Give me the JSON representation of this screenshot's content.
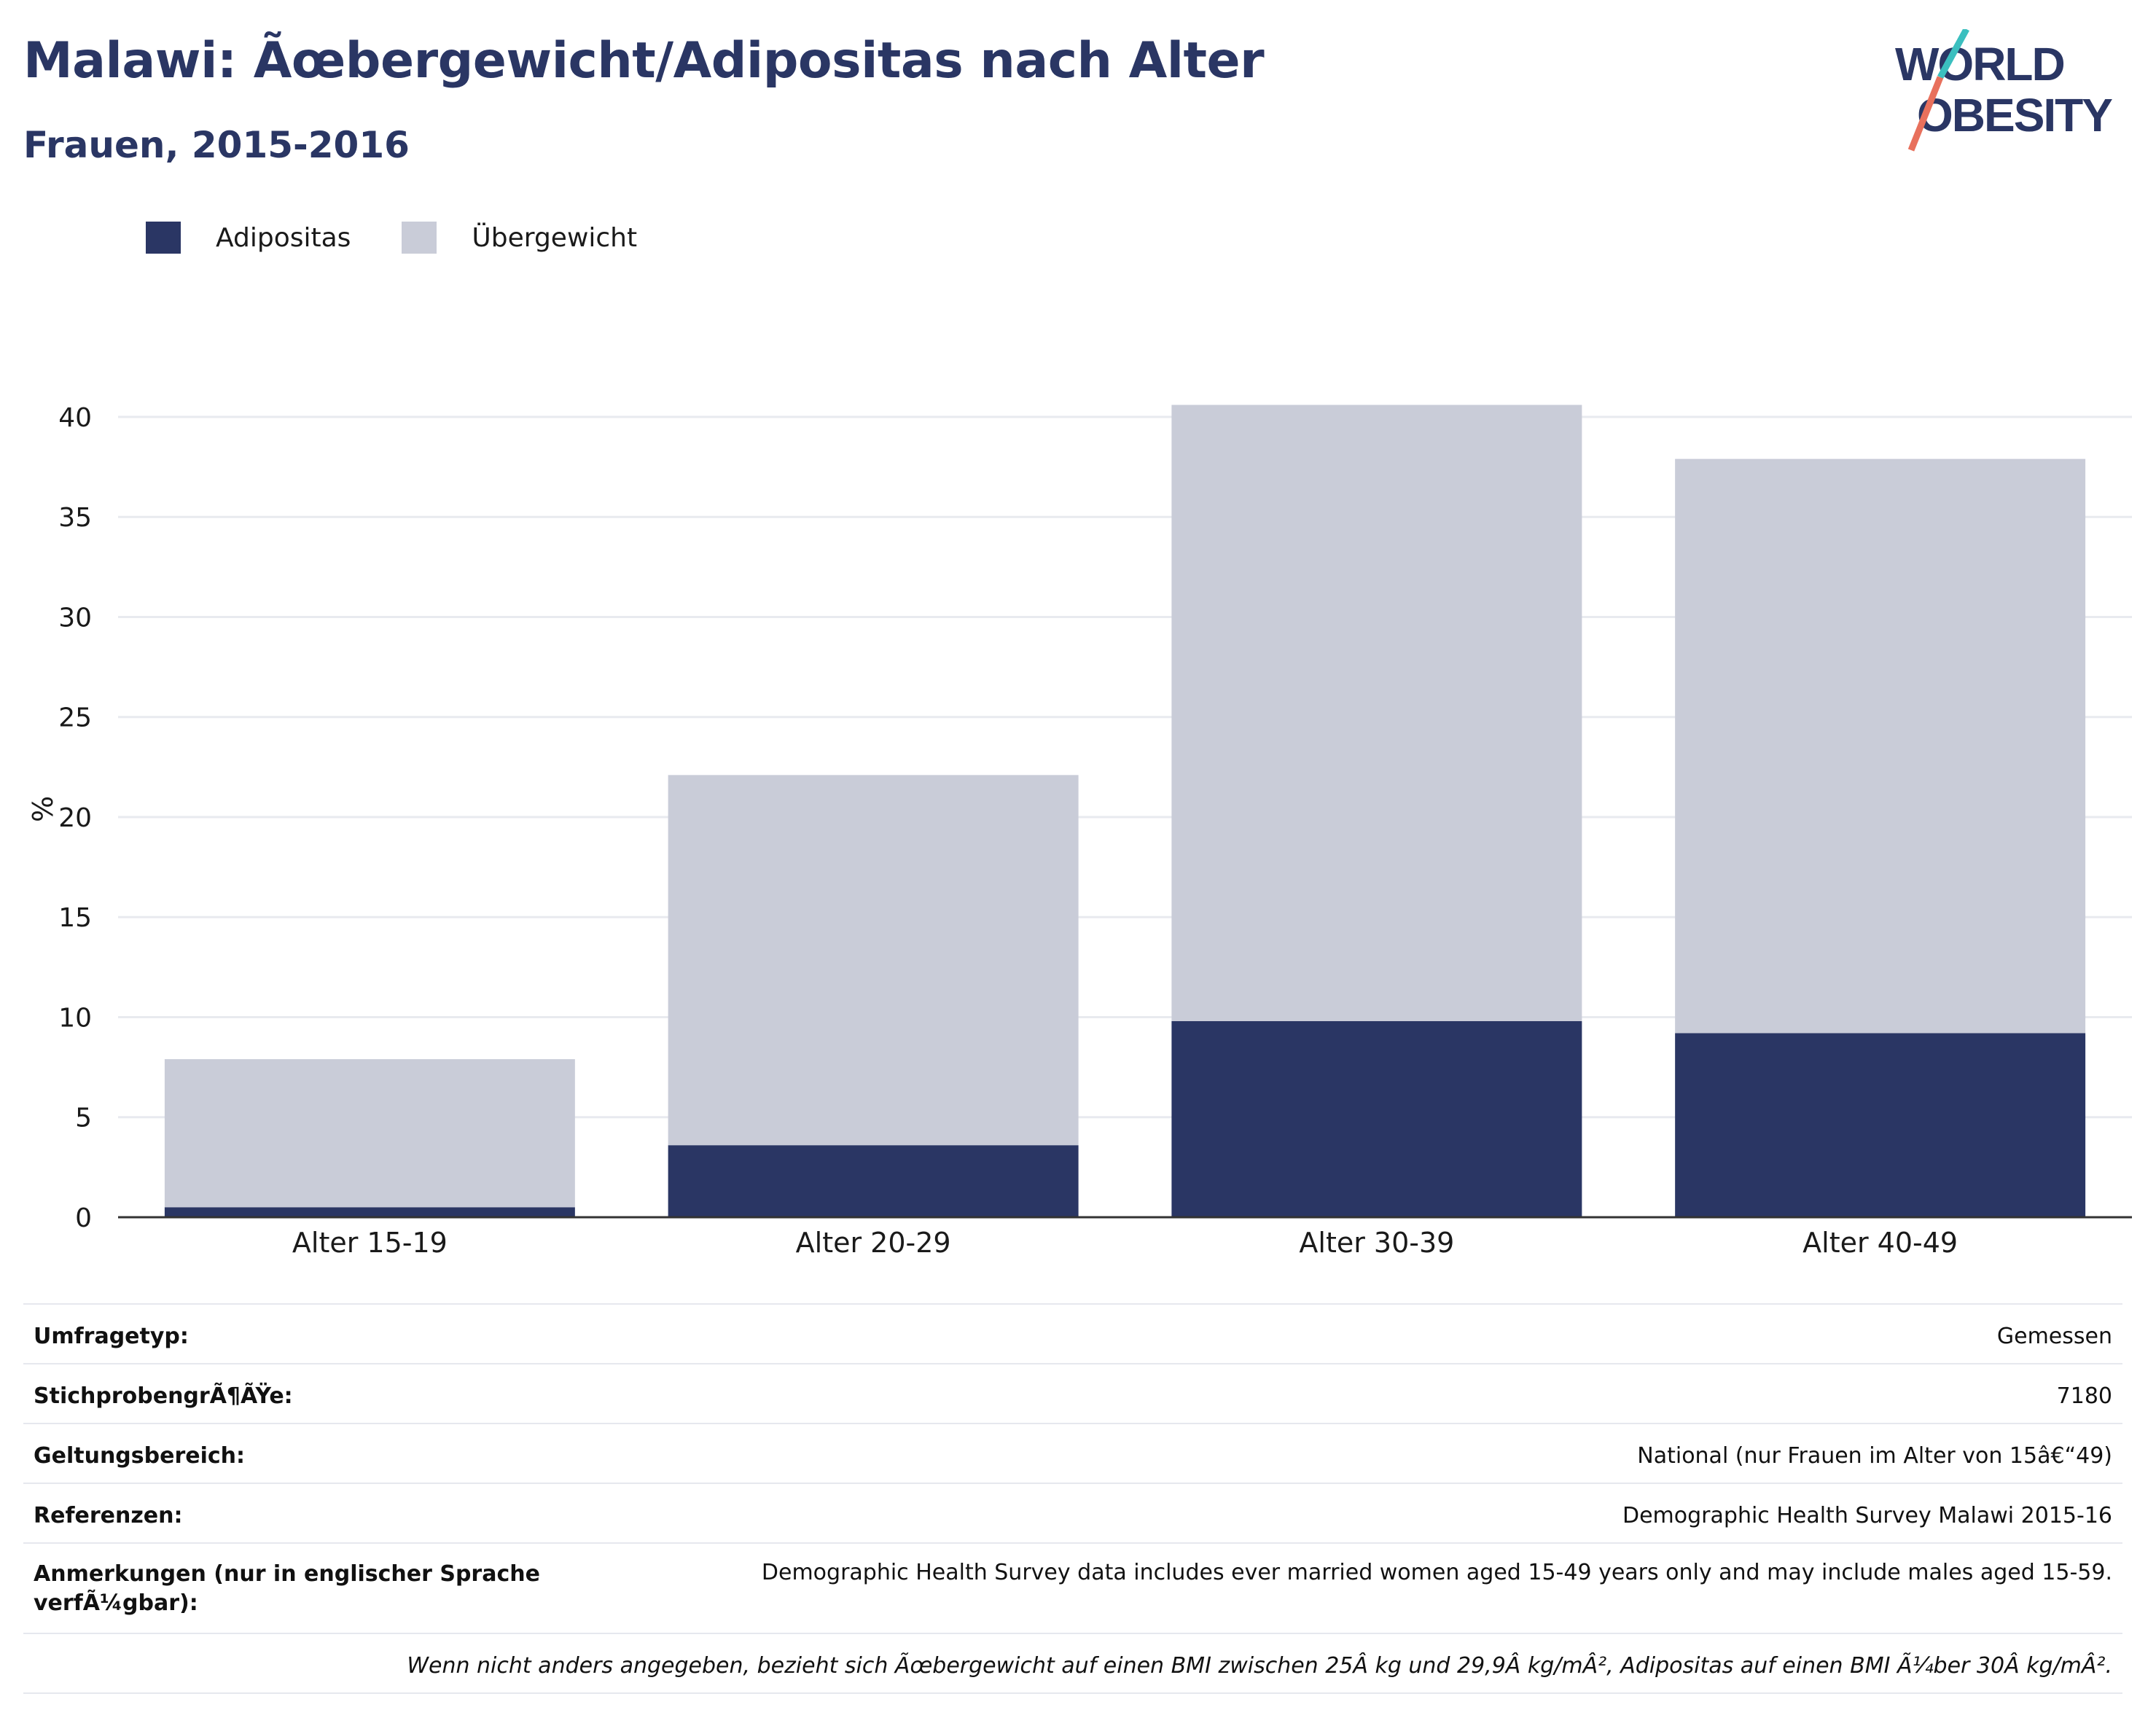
{
  "header": {
    "title": "Malawi: Ãœbergewicht/Adipositas nach Alter",
    "subtitle": "Frauen, 2015-2016"
  },
  "logo": {
    "line1": "WORLD",
    "line2": "OBESITY"
  },
  "legend": [
    {
      "label": "Adipositas",
      "color": "#2a3664"
    },
    {
      "label": "Übergewicht",
      "color": "#c9ccd8"
    }
  ],
  "chart_data": {
    "type": "bar",
    "stacked": true,
    "categories": [
      "Alter 15-19",
      "Alter 20-29",
      "Alter 30-39",
      "Alter 40-49"
    ],
    "series": [
      {
        "name": "Adipositas",
        "values": [
          0.5,
          3.6,
          9.8,
          9.2
        ],
        "color": "#2a3664"
      },
      {
        "name": "Übergewicht",
        "values": [
          7.4,
          18.5,
          30.8,
          28.7
        ],
        "color": "#c9ccd8"
      }
    ],
    "ylabel": "%",
    "ylim": [
      0,
      40.8
    ],
    "yticks": [
      "0",
      "5",
      "10",
      "15",
      "20",
      "25",
      "30",
      "35",
      "40"
    ],
    "grid": true,
    "legend_position": "top-left"
  },
  "info_table": {
    "rows": [
      {
        "label": "Umfragetyp:",
        "value": "Gemessen"
      },
      {
        "label": "StichprobengrÃ¶ÃŸe:",
        "value": "7180"
      },
      {
        "label": "Geltungsbereich:",
        "value": "National (nur Frauen im Alter von 15â€“49)"
      },
      {
        "label": "Referenzen:",
        "value": "Demographic Health Survey Malawi 2015-16"
      },
      {
        "label": "Anmerkungen (nur in englischer Sprache verfÃ¼gbar):",
        "value": "Demographic Health Survey data includes ever married women aged 15-49 years only and may include males aged 15-59."
      }
    ],
    "footnote": "Wenn nicht anders angegeben, bezieht sich Ãœbergewicht auf einen BMI zwischen 25Â kg und 29,9Â kg/mÂ², Adipositas auf einen BMI Ã¼ber 30Â kg/mÂ²."
  }
}
